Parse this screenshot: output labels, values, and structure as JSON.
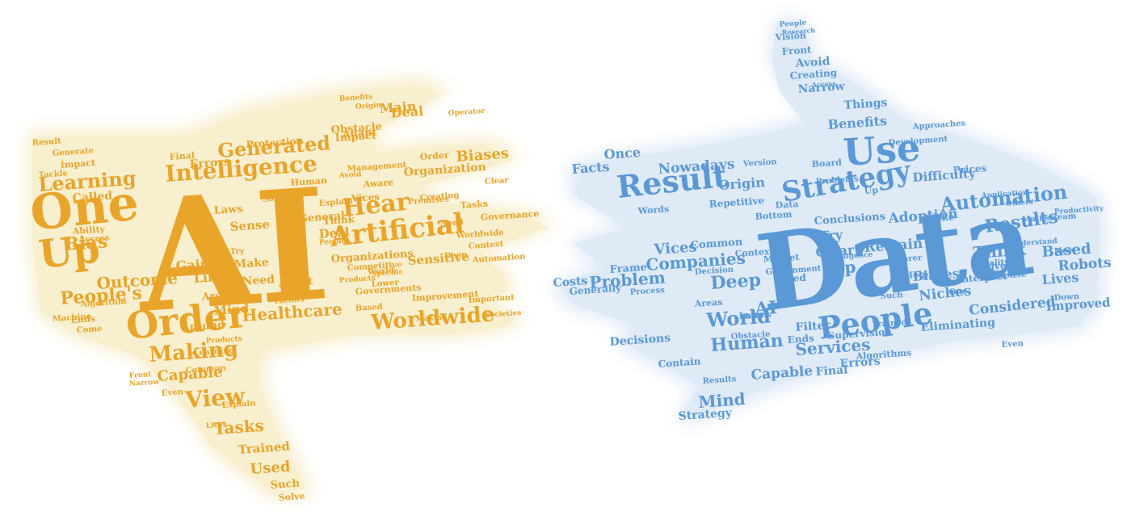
{
  "colors": {
    "left_word": "#e9a42a",
    "left_glow": "#f8efcf",
    "right_word": "#5a98d6",
    "right_glow": "#dfeaf7"
  },
  "left_cloud": {
    "main_word": "AI",
    "major_words": [
      "One",
      "Up",
      "Order",
      "Artificial",
      "Intelligence",
      "Learning",
      "Generated",
      "Worldwide",
      "Healthcare",
      "Making",
      "View",
      "Hear",
      "Bias",
      "Tasks",
      "Trained",
      "Used",
      "Such",
      "Solve"
    ],
    "minor_words": [
      "Main",
      "Obstacle",
      "Protection",
      "Errors",
      "Final",
      "Impact",
      "Generate",
      "Result",
      "Tackle",
      "Called",
      "Ability",
      "Access",
      "Laws",
      "Sense",
      "Deal",
      "Try",
      "Make",
      "Need",
      "Adapt",
      "Think",
      "Vices",
      "Aware",
      "Organization",
      "Biases",
      "Order",
      "Clear",
      "Tasks",
      "Governance",
      "Organizations",
      "Sensitive",
      "Governments",
      "Improvement",
      "Important",
      "Based",
      "Lower",
      "Societies",
      "Factors",
      "Mind",
      "Around",
      "Areas",
      "Line",
      "Gains",
      "Outcome",
      "People's",
      "Ends",
      "Come",
      "Machine",
      "Capable",
      "Even",
      "Algorithm",
      "Explain",
      "Narrow",
      "Common",
      "Learning",
      "Products",
      "Front",
      "Context",
      "Automation",
      "Products",
      "World",
      "Deep",
      "Specific",
      "Competitive",
      "Premises",
      "Management",
      "Creating",
      "Making",
      "Avoid",
      "Operator",
      "Worldwide",
      "Need",
      "People",
      "Benefits",
      "Lives",
      "Solution",
      "Human",
      "General",
      "Explain",
      "Impact",
      "Origin",
      "Deal",
      "Adapt"
    ]
  },
  "right_cloud": {
    "main_word": "Data",
    "major_words": [
      "Use",
      "Result",
      "Strategy",
      "People",
      "Automation",
      "Results",
      "Human",
      "World",
      "AI",
      "Companies",
      "Problem",
      "Services",
      "Mind",
      "Capable",
      "Considered",
      "Niches",
      "Deep",
      "Top",
      "Clear",
      "Try",
      "Adoption",
      "Benefits",
      "Origin",
      "Facts",
      "Once",
      "Nowadays",
      "Things",
      "Narrow",
      "Creating",
      "Avoid",
      "Front",
      "Vision"
    ],
    "minor_words": [
      "People",
      "Research",
      "Access",
      "Development",
      "Version",
      "Board",
      "Problems",
      "Difficulty",
      "Prices",
      "Repetitive",
      "Conclusions",
      "Words",
      "Data",
      "Bottom",
      "Context",
      "Common",
      "Decision",
      "Vices",
      "Costs",
      "Frame",
      "Generally",
      "Process",
      "Decisions",
      "Contain",
      "Filter",
      "Laws",
      "Market",
      "Government",
      "Used",
      "Supervision",
      "Final",
      "Ends",
      "Errors",
      "Algorithms",
      "Eliminating",
      "Improved",
      "Based",
      "Robots",
      "Lives",
      "New",
      "Down",
      "Interpret",
      "Reality",
      "Sense",
      "Solve",
      "Think",
      "Biases",
      "One",
      "Up",
      "Remain",
      "Understand",
      "Mainstream",
      "Productivity",
      "Others",
      "Application",
      "Approaches",
      "Such",
      "Clearer",
      "Intelligence",
      "Helping",
      "Trained",
      "Areas",
      "Obstacle",
      "Strategy",
      "Even",
      "Robots",
      "Results",
      "Make"
    ]
  }
}
